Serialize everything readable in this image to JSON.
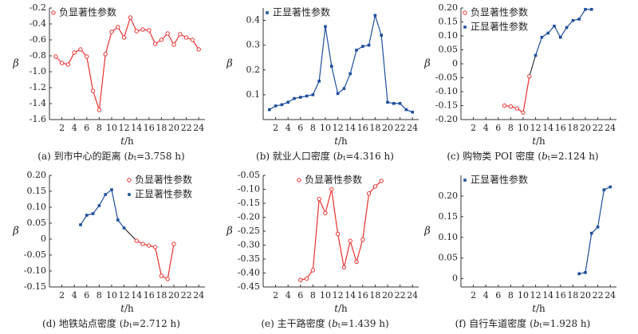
{
  "chart_data": [
    {
      "type": "line",
      "caption": {
        "text": "(a) 到市中心的距离 (",
        "var": "b",
        "sub": "t",
        "rest": "=3.758 h)"
      },
      "xlabel": {
        "var": "t",
        "rest": "/h"
      },
      "ylabel": "β",
      "legend": "upper left",
      "x": [
        1,
        2,
        3,
        4,
        5,
        6,
        7,
        8,
        9,
        10,
        11,
        12,
        13,
        14,
        15,
        16,
        17,
        18,
        19,
        20,
        21,
        22,
        23,
        24
      ],
      "xlim": [
        0,
        25
      ],
      "xticks": [
        2,
        4,
        6,
        8,
        10,
        12,
        14,
        16,
        18,
        20,
        22,
        24
      ],
      "ylim": [
        -1.6,
        -0.2
      ],
      "yticks": [
        -1.6,
        -1.4,
        -1.2,
        {
          "value": -1.0,
          "label": "-1.0"
        },
        -0.8,
        -0.6,
        -0.4,
        -0.2
      ],
      "series": [
        {
          "name": "负显著性参数",
          "color": "#e8312f",
          "marker": "circle",
          "values": [
            -0.81,
            -0.89,
            -0.91,
            -0.76,
            -0.72,
            -0.81,
            -1.24,
            -1.48,
            -0.78,
            -0.5,
            -0.44,
            -0.57,
            -0.32,
            -0.49,
            -0.47,
            -0.48,
            -0.65,
            -0.6,
            -0.52,
            -0.66,
            -0.53,
            -0.57,
            -0.6,
            -0.72
          ]
        }
      ]
    },
    {
      "type": "line",
      "caption": {
        "text": "(b) 就业人口密度 (",
        "var": "b",
        "sub": "t",
        "rest": "=4.316 h)"
      },
      "xlabel": {
        "var": "t",
        "rest": "/h"
      },
      "ylabel": "β",
      "legend": "upper left",
      "x": [
        1,
        2,
        3,
        4,
        5,
        6,
        7,
        8,
        9,
        10,
        11,
        12,
        13,
        14,
        15,
        16,
        17,
        18,
        19,
        20,
        21,
        22,
        23,
        24
      ],
      "xlim": [
        0,
        25
      ],
      "xticks": [
        2,
        4,
        6,
        8,
        10,
        12,
        14,
        16,
        18,
        20,
        22,
        24
      ],
      "ylim": [
        0,
        0.45
      ],
      "yticks": [
        0.1,
        0.2,
        0.3,
        0.4
      ],
      "series": [
        {
          "name": "正显著性参数",
          "color": "#1f4e9c",
          "marker": "square",
          "values": [
            0.04,
            0.055,
            0.06,
            0.07,
            0.085,
            0.09,
            0.095,
            0.1,
            0.155,
            0.375,
            0.215,
            0.105,
            0.125,
            0.185,
            0.28,
            0.295,
            0.3,
            0.42,
            0.34,
            0.07,
            0.065,
            0.065,
            0.04,
            0.03
          ]
        }
      ]
    },
    {
      "type": "line",
      "caption": {
        "text": "(c) 购物类 POI 密度 (",
        "var": "b",
        "sub": "t",
        "rest": "=2.124 h)"
      },
      "xlabel": {
        "var": "t",
        "rest": "/h"
      },
      "ylabel": "β",
      "legend": "upper left",
      "x": [
        1,
        2,
        3,
        4,
        5,
        6,
        7,
        8,
        9,
        10,
        11,
        12,
        13,
        14,
        15,
        16,
        17,
        18,
        19,
        20,
        21,
        22,
        23,
        24
      ],
      "xlim": [
        0,
        25
      ],
      "xticks": [
        2,
        4,
        6,
        8,
        10,
        12,
        14,
        16,
        18,
        20,
        22,
        24
      ],
      "ylim": [
        -0.2,
        0.2
      ],
      "yticks": [
        {
          "value": -0.2,
          "label": "-0.20"
        },
        -0.15,
        {
          "value": -0.1,
          "label": "-0.10"
        },
        -0.05,
        0,
        0.05,
        {
          "value": 0.1,
          "label": "0.10"
        },
        0.15,
        {
          "value": 0.2,
          "label": "0.20"
        }
      ],
      "series": [
        {
          "name": "负显著性参数",
          "color": "#e8312f",
          "marker": "circle",
          "values": [
            null,
            null,
            null,
            null,
            null,
            null,
            -0.15,
            -0.153,
            -0.16,
            -0.175,
            -0.045,
            null,
            null,
            null,
            null,
            null,
            null,
            null,
            null,
            null,
            null,
            null,
            null,
            null
          ]
        },
        {
          "name": "正显著性参数",
          "color": "#1f4e9c",
          "marker": "square",
          "values": [
            null,
            null,
            null,
            null,
            null,
            null,
            null,
            null,
            null,
            null,
            null,
            0.03,
            0.095,
            0.11,
            0.135,
            0.095,
            0.13,
            0.155,
            0.16,
            0.195,
            0.195,
            null,
            null,
            null
          ]
        }
      ]
    },
    {
      "type": "line",
      "caption": {
        "text": "(d) 地铁站点密度 (",
        "var": "b",
        "sub": "t",
        "rest": "=2.712 h)"
      },
      "xlabel": {
        "var": "t",
        "rest": "/h"
      },
      "ylabel": "β",
      "legend": "upper right",
      "x": [
        1,
        2,
        3,
        4,
        5,
        6,
        7,
        8,
        9,
        10,
        11,
        12,
        13,
        14,
        15,
        16,
        17,
        18,
        19,
        20,
        21,
        22,
        23,
        24
      ],
      "xlim": [
        0,
        25
      ],
      "xticks": [
        2,
        4,
        6,
        8,
        10,
        12,
        14,
        16,
        18,
        20,
        22,
        24
      ],
      "ylim": [
        -0.15,
        0.2
      ],
      "yticks": [
        -0.15,
        {
          "value": -0.1,
          "label": "-0.10"
        },
        -0.05,
        0,
        0.05,
        {
          "value": 0.1,
          "label": "0.10"
        },
        0.15,
        {
          "value": 0.2,
          "label": "0.20"
        }
      ],
      "series": [
        {
          "name": "负显著性参数",
          "color": "#e8312f",
          "marker": "circle",
          "values": [
            null,
            null,
            null,
            null,
            null,
            null,
            null,
            null,
            null,
            null,
            null,
            null,
            null,
            -0.005,
            -0.015,
            -0.02,
            -0.025,
            -0.115,
            -0.125,
            -0.015,
            null,
            null,
            null,
            null
          ]
        },
        {
          "name": "正显著性参数",
          "color": "#1f4e9c",
          "marker": "square",
          "values": [
            null,
            null,
            null,
            null,
            0.045,
            0.075,
            0.08,
            0.105,
            0.14,
            0.155,
            0.06,
            0.035,
            null,
            null,
            null,
            null,
            null,
            null,
            null,
            null,
            null,
            null,
            null,
            null
          ]
        }
      ]
    },
    {
      "type": "line",
      "caption": {
        "text": "(e) 主干路密度 (",
        "var": "b",
        "sub": "t",
        "rest": "=1.439 h)"
      },
      "xlabel": {
        "var": "t",
        "rest": "/h"
      },
      "ylabel": "β",
      "legend": "upper center",
      "x": [
        1,
        2,
        3,
        4,
        5,
        6,
        7,
        8,
        9,
        10,
        11,
        12,
        13,
        14,
        15,
        16,
        17,
        18,
        19,
        20,
        21,
        22,
        23,
        24
      ],
      "xlim": [
        0,
        25
      ],
      "xticks": [
        2,
        4,
        6,
        8,
        10,
        12,
        14,
        16,
        18,
        20,
        22,
        24
      ],
      "ylim": [
        -0.45,
        -0.05
      ],
      "yticks": [
        -0.45,
        {
          "value": -0.4,
          "label": "-0.40"
        },
        -0.35,
        {
          "value": -0.3,
          "label": "-0.30"
        },
        -0.25,
        {
          "value": -0.2,
          "label": "-0.20"
        },
        -0.15,
        {
          "value": -0.1,
          "label": "-0.10"
        },
        -0.05
      ],
      "series": [
        {
          "name": "负显著性参数",
          "color": "#e8312f",
          "marker": "circle",
          "values": [
            null,
            null,
            null,
            null,
            null,
            -0.425,
            -0.42,
            -0.39,
            -0.135,
            -0.185,
            -0.1,
            -0.26,
            -0.38,
            -0.285,
            -0.36,
            -0.28,
            -0.115,
            -0.09,
            -0.07,
            null,
            null,
            null,
            null,
            null
          ]
        }
      ]
    },
    {
      "type": "line",
      "caption": {
        "text": "(f) 自行车道密度 (",
        "var": "b",
        "sub": "t",
        "rest": "=1.928 h)"
      },
      "xlabel": {
        "var": "t",
        "rest": "/h"
      },
      "ylabel": "β",
      "legend": "upper left",
      "x": [
        1,
        2,
        3,
        4,
        5,
        6,
        7,
        8,
        9,
        10,
        11,
        12,
        13,
        14,
        15,
        16,
        17,
        18,
        19,
        20,
        21,
        22,
        23,
        24
      ],
      "xlim": [
        0,
        25
      ],
      "xticks": [
        2,
        4,
        6,
        8,
        10,
        12,
        14,
        16,
        18,
        20,
        22,
        24
      ],
      "ylim": [
        -0.02,
        0.25
      ],
      "yticks": [
        0,
        0.05,
        {
          "value": 0.1,
          "label": "0.10"
        },
        0.15,
        {
          "value": 0.2,
          "label": "0.20"
        }
      ],
      "series": [
        {
          "name": "正显著性参数",
          "color": "#1f4e9c",
          "marker": "square",
          "values": [
            null,
            null,
            null,
            null,
            null,
            null,
            null,
            null,
            null,
            null,
            null,
            null,
            null,
            null,
            null,
            null,
            null,
            null,
            0.012,
            0.015,
            0.11,
            0.125,
            0.215,
            0.222
          ]
        }
      ]
    }
  ]
}
